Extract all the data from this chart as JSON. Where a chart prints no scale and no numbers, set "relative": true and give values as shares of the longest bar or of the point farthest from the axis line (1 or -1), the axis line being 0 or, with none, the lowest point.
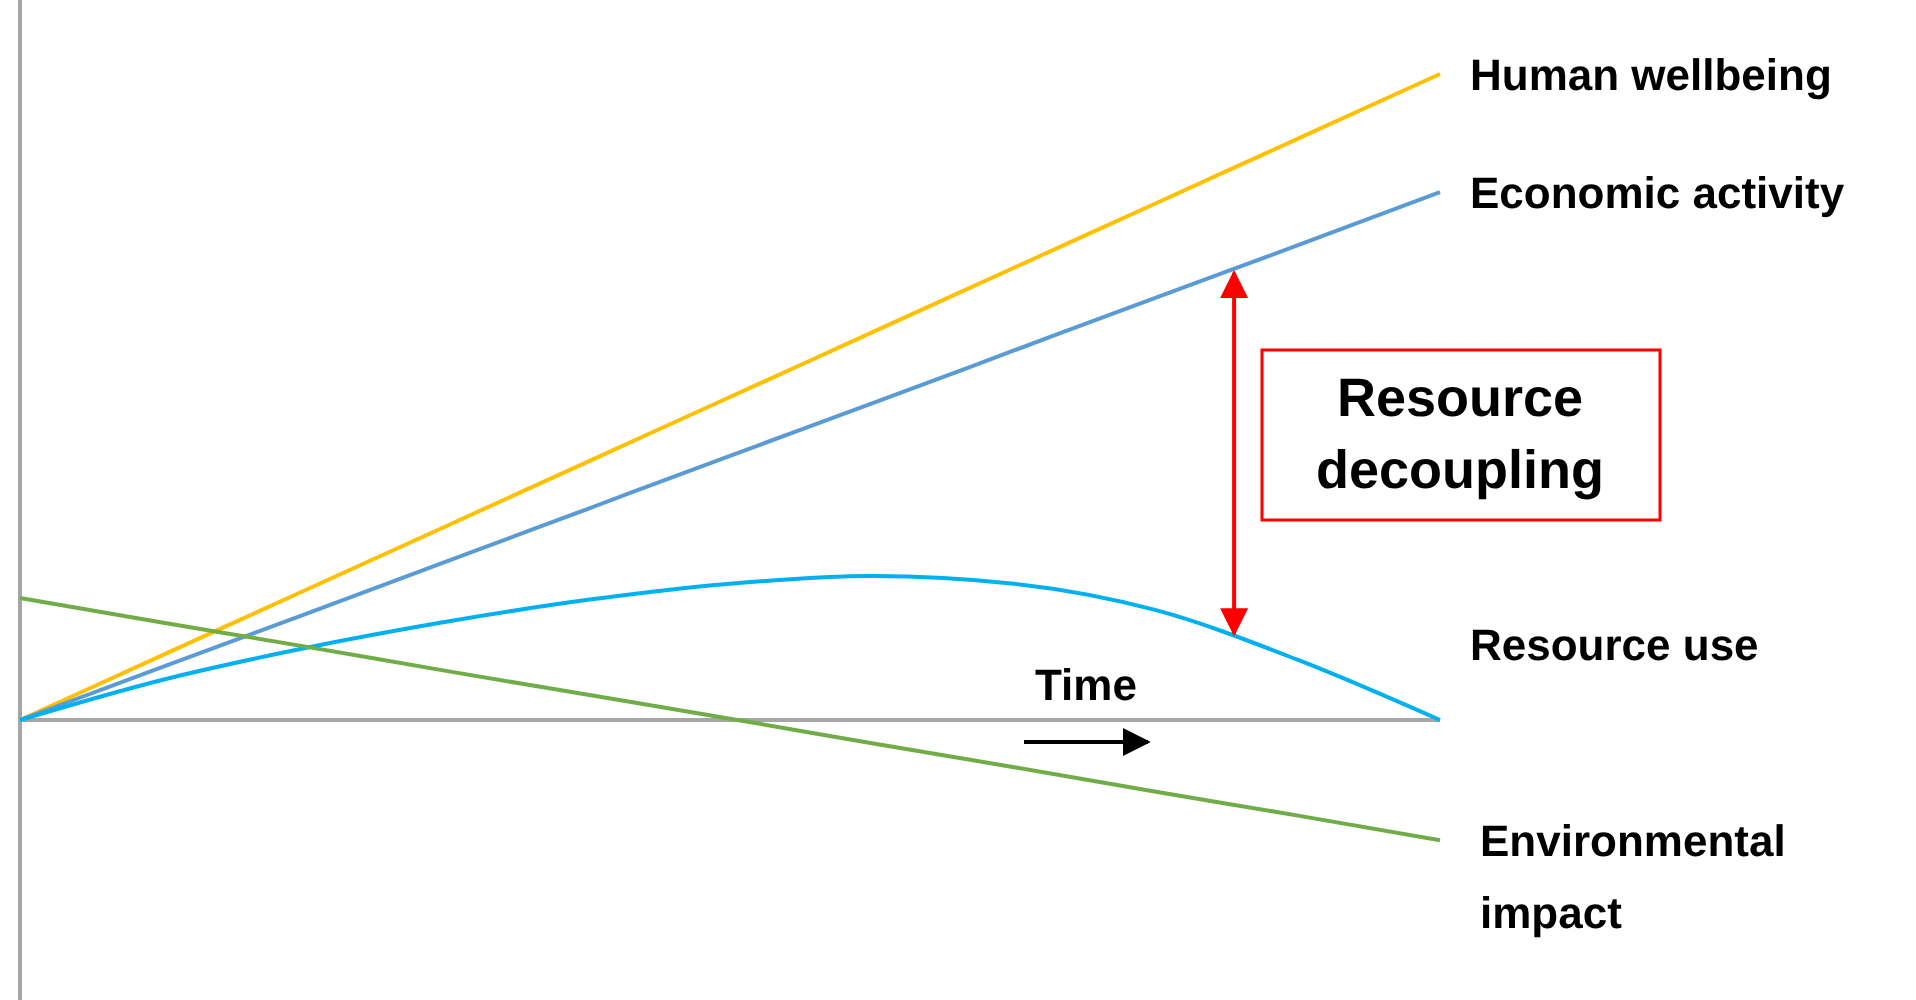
{
  "chart_data": {
    "type": "line",
    "relative": true,
    "categories": [
      null,
      null,
      null,
      null,
      null,
      null,
      null,
      null,
      null,
      null,
      null
    ],
    "series": [
      {
        "name": "Human wellbeing",
        "color": "#ffc000",
        "values": [
          0,
          0.1,
          0.2,
          0.3,
          0.4,
          0.5,
          0.6,
          0.7,
          0.8,
          0.9,
          1
        ]
      },
      {
        "name": "Economic activity",
        "color": "#5b9bd5",
        "values": [
          0,
          0.082,
          0.163,
          0.245,
          0.327,
          0.409,
          0.49,
          0.572,
          0.654,
          0.735,
          0.817
        ]
      },
      {
        "name": "Resource use",
        "color": "#00b0f0",
        "values": [
          0,
          0.062,
          0.111,
          0.152,
          0.186,
          0.211,
          0.223,
          0.211,
          0.17,
          0.093,
          0
        ]
      },
      {
        "name": "Environmental impact",
        "color": "#70ad47",
        "values": [
          0.189,
          0.151,
          0.114,
          0.076,
          0.039,
          0.002,
          -0.036,
          -0.073,
          -0.111,
          -0.148,
          -0.186
        ]
      }
    ],
    "legend": false,
    "marker": "none",
    "line_style": "solid",
    "annotations": [
      "Time",
      "Resource decoupling"
    ]
  }
}
